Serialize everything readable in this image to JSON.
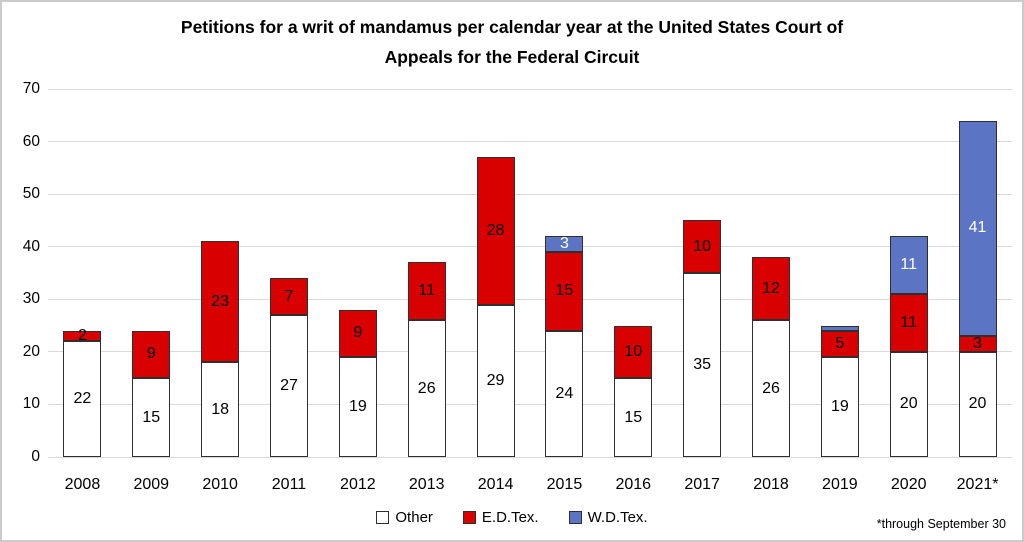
{
  "header": {
    "title_line1": "Petitions for a writ of mandamus per calendar year at the United States Court of",
    "title_line2": "Appeals for the Federal Circuit"
  },
  "footnote": "*through September 30",
  "chart_data": {
    "type": "bar",
    "stacked": true,
    "title": "Petitions for a writ of mandamus per calendar year at the United States Court of Appeals for the Federal Circuit",
    "xlabel": "",
    "ylabel": "",
    "ylim": [
      0,
      70
    ],
    "yticks": [
      0,
      10,
      20,
      30,
      40,
      50,
      60,
      70
    ],
    "grid": "horizontal",
    "legend_position": "bottom",
    "min_value_for_label": 2,
    "footnote": "*through September 30",
    "categories": [
      "2008",
      "2009",
      "2010",
      "2011",
      "2012",
      "2013",
      "2014",
      "2015",
      "2016",
      "2017",
      "2018",
      "2019",
      "2020",
      "2021*"
    ],
    "series": [
      {
        "name": "Other",
        "color": "#ffffff",
        "label_color": "#000000",
        "values": [
          22,
          15,
          18,
          27,
          19,
          26,
          29,
          24,
          15,
          35,
          26,
          19,
          20,
          20
        ]
      },
      {
        "name": "E.D.Tex.",
        "color": "#d80000",
        "label_color": "#000000",
        "values": [
          2,
          9,
          23,
          7,
          9,
          11,
          28,
          15,
          10,
          10,
          12,
          5,
          11,
          3
        ]
      },
      {
        "name": "W.D.Tex.",
        "color": "#5b74c4",
        "label_color": "#ffffff",
        "values": [
          0,
          0,
          0,
          0,
          0,
          0,
          0,
          3,
          0,
          0,
          0,
          1,
          11,
          41
        ]
      }
    ],
    "totals": [
      24,
      24,
      41,
      34,
      28,
      37,
      57,
      42,
      25,
      45,
      38,
      25,
      42,
      64
    ]
  }
}
